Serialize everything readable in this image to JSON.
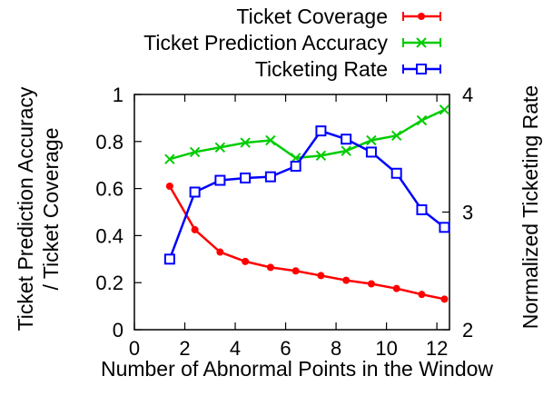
{
  "chart_data": {
    "type": "line",
    "title": "",
    "xlabel": "Number of Abnormal Points in the Window",
    "ylabel_left": [
      "Ticket Prediction Accuracy",
      "/ Ticket Coverage"
    ],
    "ylabel_right": "Normalized Ticketing Rate",
    "xlim": [
      0,
      12.5
    ],
    "ylim_left": [
      0,
      1
    ],
    "ylim_right": [
      2,
      4
    ],
    "x_ticks": [
      0,
      2,
      4,
      6,
      8,
      10,
      12
    ],
    "y_left_ticks": [
      0,
      0.2,
      0.4,
      0.6,
      0.8,
      1
    ],
    "y_left_tick_labels": [
      "0",
      "0.2",
      "0.4",
      "0.6",
      "0.8",
      "1"
    ],
    "y_right_ticks": [
      2,
      3,
      4
    ],
    "grid": false,
    "legend_position": "top-right",
    "x": [
      1.4,
      2.4,
      3.4,
      4.4,
      5.4,
      6.4,
      7.4,
      8.4,
      9.4,
      10.4,
      11.4,
      12.3
    ],
    "series": [
      {
        "name": "Ticket Coverage",
        "axis": "left",
        "color": "#ff0000",
        "marker": "dot",
        "values": [
          0.61,
          0.425,
          0.33,
          0.29,
          0.265,
          0.25,
          0.23,
          0.21,
          0.195,
          0.175,
          0.15,
          0.13
        ]
      },
      {
        "name": "Ticket Prediction Accuracy",
        "axis": "left",
        "color": "#00cc00",
        "marker": "x",
        "values": [
          0.725,
          0.755,
          0.775,
          0.795,
          0.805,
          0.73,
          0.74,
          0.76,
          0.805,
          0.825,
          0.89,
          0.935
        ]
      },
      {
        "name": "Ticketing Rate",
        "axis": "right",
        "color": "#0000ff",
        "marker": "square",
        "values": [
          2.6,
          3.17,
          3.27,
          3.29,
          3.3,
          3.39,
          3.69,
          3.62,
          3.51,
          3.33,
          3.02,
          2.87
        ]
      }
    ]
  }
}
